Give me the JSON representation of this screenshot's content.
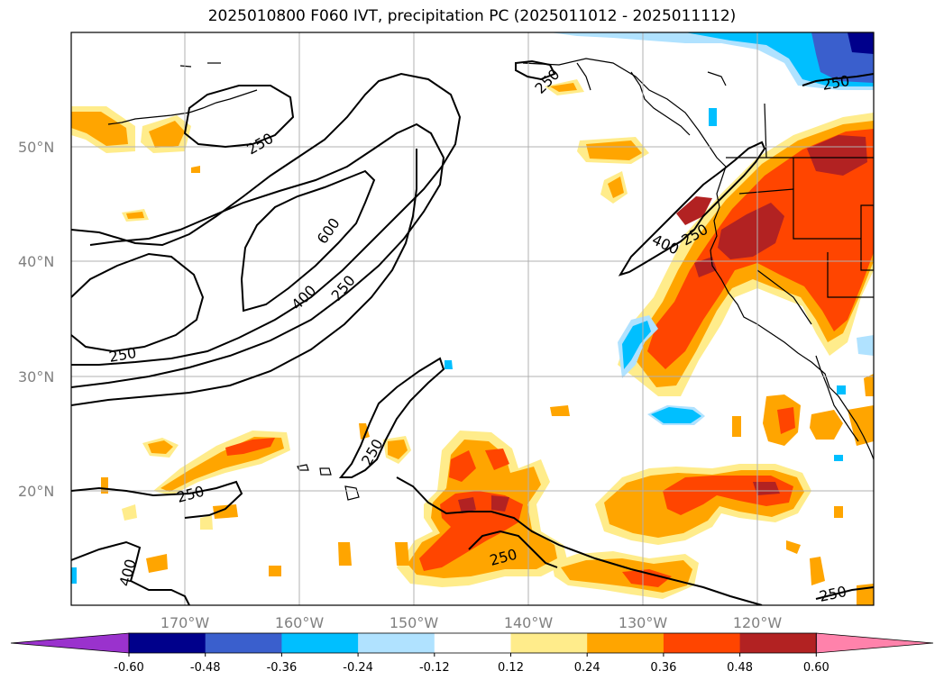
{
  "title": "2025010800 F060 IVT, precipitation PC (2025011012 - 2025011112)",
  "lat_labels": [
    "50°N",
    "40°N",
    "30°N",
    "20°N"
  ],
  "lon_labels": [
    "170°W",
    "160°W",
    "150°W",
    "140°W",
    "130°W",
    "120°W"
  ],
  "contour_labels": [
    "250",
    "250",
    "600",
    "400",
    "250",
    "250",
    "250",
    "250",
    "400",
    "250",
    "400",
    "250",
    "250",
    "250"
  ],
  "colorbar": {
    "ticks": [
      "-0.60",
      "-0.48",
      "-0.36",
      "-0.24",
      "-0.12",
      "0.12",
      "0.24",
      "0.36",
      "0.48",
      "0.60"
    ],
    "colors": [
      "#9a32cd",
      "#00008b",
      "#3a5fcd",
      "#00bfff",
      "#b0e2ff",
      "#ffffff",
      "#ffec8b",
      "#ffa500",
      "#ff4500",
      "#b22222",
      "#ff82ab"
    ]
  },
  "palette": {
    "light_yellow": "#ffec8b",
    "orange": "#ffa500",
    "red_orange": "#ff4500",
    "dark_red": "#b22222",
    "light_blue": "#b0e2ff",
    "blue": "#00bfff",
    "mid_blue": "#3a5fcd",
    "navy": "#00008b"
  }
}
